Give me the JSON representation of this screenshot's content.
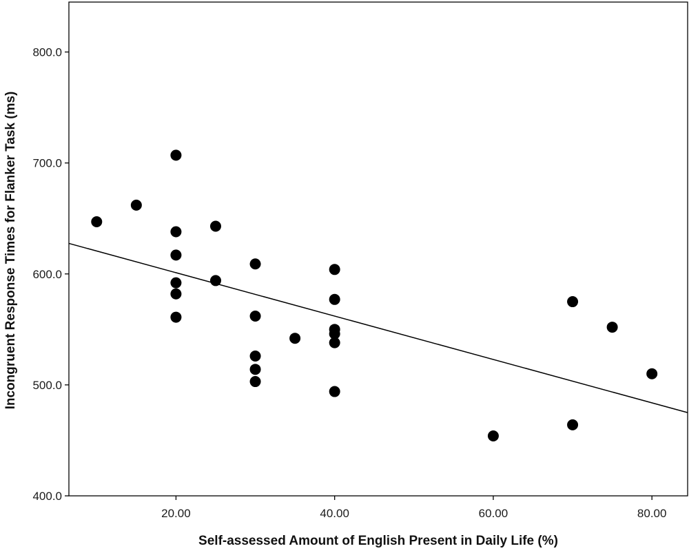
{
  "chart_data": {
    "type": "scatter",
    "title": "",
    "xlabel": "Self-assessed Amount of English Present in Daily Life (%)",
    "ylabel": "Incongruent Response Times for Flanker Task (ms)",
    "xlim": [
      6.5,
      84.5
    ],
    "ylim": [
      400,
      845
    ],
    "x_ticks": [
      20,
      40,
      60,
      80
    ],
    "x_tick_labels": [
      "20.00",
      "40.00",
      "60.00",
      "80.00"
    ],
    "y_ticks": [
      400,
      500,
      600,
      700,
      800
    ],
    "y_tick_labels": [
      "400.0",
      "500.0",
      "600.0",
      "700.0",
      "800.0"
    ],
    "grid": false,
    "legend": "none",
    "marker_color": "#000000",
    "points": [
      {
        "x": 10,
        "y": 647
      },
      {
        "x": 15,
        "y": 662
      },
      {
        "x": 20,
        "y": 707
      },
      {
        "x": 20,
        "y": 638
      },
      {
        "x": 20,
        "y": 617
      },
      {
        "x": 20,
        "y": 592
      },
      {
        "x": 20,
        "y": 582
      },
      {
        "x": 20,
        "y": 561
      },
      {
        "x": 25,
        "y": 643
      },
      {
        "x": 25,
        "y": 594
      },
      {
        "x": 30,
        "y": 609
      },
      {
        "x": 30,
        "y": 562
      },
      {
        "x": 30,
        "y": 526
      },
      {
        "x": 30,
        "y": 514
      },
      {
        "x": 30,
        "y": 503
      },
      {
        "x": 35,
        "y": 542
      },
      {
        "x": 40,
        "y": 604
      },
      {
        "x": 40,
        "y": 577
      },
      {
        "x": 40,
        "y": 550
      },
      {
        "x": 40,
        "y": 546
      },
      {
        "x": 40,
        "y": 538
      },
      {
        "x": 40,
        "y": 494
      },
      {
        "x": 60,
        "y": 454
      },
      {
        "x": 70,
        "y": 575
      },
      {
        "x": 70,
        "y": 464
      },
      {
        "x": 75,
        "y": 552
      },
      {
        "x": 80,
        "y": 510
      }
    ],
    "fit_line": {
      "x": [
        6.5,
        84.5
      ],
      "y": [
        627.5,
        475
      ]
    }
  }
}
